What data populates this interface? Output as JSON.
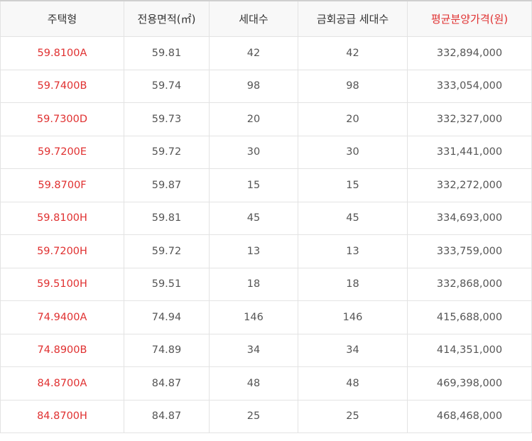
{
  "colors": {
    "highlight": "#e03030",
    "header_bg": "#f8f8f8",
    "border": "#e3e3e3"
  },
  "table": {
    "headers": [
      "주택형",
      "전용면적(㎡)",
      "세대수",
      "금회공급 세대수",
      "평균분양가격(원)"
    ],
    "rows": [
      [
        "59.8100A",
        "59.81",
        "42",
        "42",
        "332,894,000"
      ],
      [
        "59.7400B",
        "59.74",
        "98",
        "98",
        "333,054,000"
      ],
      [
        "59.7300D",
        "59.73",
        "20",
        "20",
        "332,327,000"
      ],
      [
        "59.7200E",
        "59.72",
        "30",
        "30",
        "331,441,000"
      ],
      [
        "59.8700F",
        "59.87",
        "15",
        "15",
        "332,272,000"
      ],
      [
        "59.8100H",
        "59.81",
        "45",
        "45",
        "334,693,000"
      ],
      [
        "59.7200H",
        "59.72",
        "13",
        "13",
        "333,759,000"
      ],
      [
        "59.5100H",
        "59.51",
        "18",
        "18",
        "332,868,000"
      ],
      [
        "74.9400A",
        "74.94",
        "146",
        "146",
        "415,688,000"
      ],
      [
        "74.8900B",
        "74.89",
        "34",
        "34",
        "414,351,000"
      ],
      [
        "84.8700A",
        "84.87",
        "48",
        "48",
        "469,398,000"
      ],
      [
        "84.8700H",
        "84.87",
        "25",
        "25",
        "468,468,000"
      ]
    ]
  }
}
